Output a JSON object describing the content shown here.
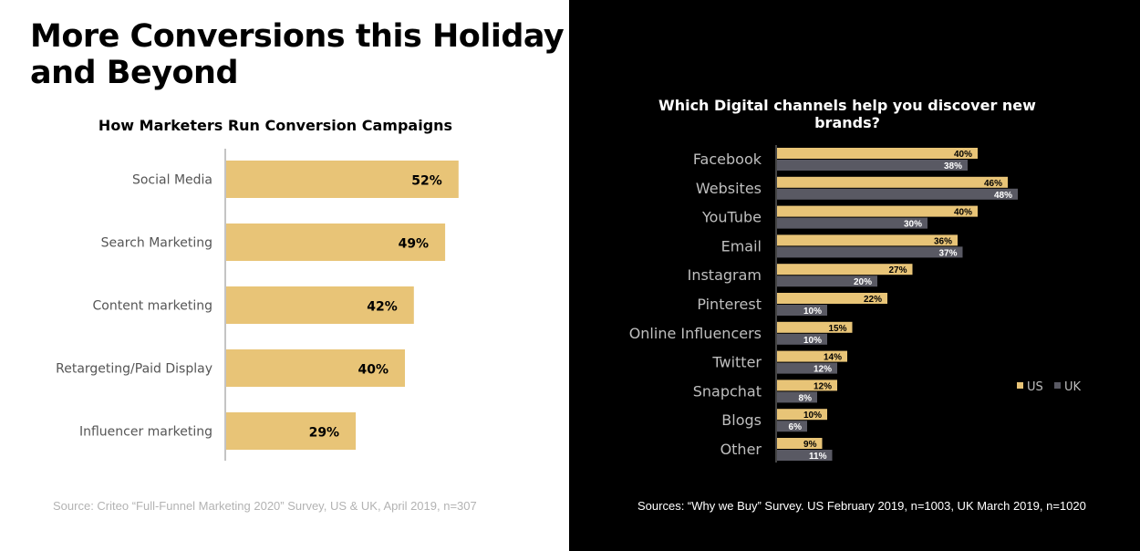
{
  "headline": "More Conversions this Holiday and Beyond",
  "colors": {
    "gold": "#e8c477",
    "gray": "#595963",
    "axis": "#888888"
  },
  "chart_data": [
    {
      "type": "bar",
      "orientation": "horizontal",
      "title": "How Marketers Run Conversion Campaigns",
      "categories": [
        "Social Media",
        "Search Marketing",
        "Content marketing",
        "Retargeting/Paid Display",
        "Influencer marketing"
      ],
      "values": [
        52,
        49,
        42,
        40,
        29
      ],
      "labels": [
        "52%",
        "49%",
        "42%",
        "40%",
        "29%"
      ],
      "xlim": [
        0,
        100
      ],
      "grid": false,
      "source": "Source: Criteo “Full-Funnel Marketing 2020” Survey, US & UK, April 2019, n=307"
    },
    {
      "type": "bar",
      "orientation": "horizontal",
      "title": "Which Digital channels help you discover new brands?",
      "categories": [
        "Facebook",
        "Websites",
        "YouTube",
        "Email",
        "Instagram",
        "Pinterest",
        "Online Influencers",
        "Twitter",
        "Snapchat",
        "Blogs",
        "Other"
      ],
      "series": [
        {
          "name": "US",
          "values": [
            40,
            46,
            40,
            36,
            27,
            22,
            15,
            14,
            12,
            10,
            9
          ],
          "labels": [
            "40%",
            "46%",
            "40%",
            "36%",
            "27%",
            "22%",
            "15%",
            "14%",
            "12%",
            "10%",
            "9%"
          ]
        },
        {
          "name": "UK",
          "values": [
            38,
            48,
            30,
            37,
            20,
            10,
            10,
            12,
            8,
            6,
            11
          ],
          "labels": [
            "38%",
            "48%",
            "30%",
            "37%",
            "20%",
            "10%",
            "10%",
            "12%",
            "8%",
            "6%",
            "11%"
          ]
        }
      ],
      "xlim": [
        0,
        100
      ],
      "grid": false,
      "legend": "right",
      "source": "Sources: “Why we Buy” Survey. US February 2019, n=1003, UK March 2019, n=1020"
    }
  ]
}
